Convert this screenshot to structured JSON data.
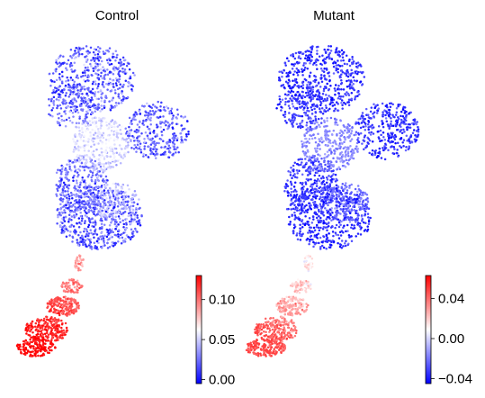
{
  "chart_data": [
    {
      "type": "scatter",
      "subtype": "embedding-colored-by-value",
      "title": "Control",
      "xlabel": "",
      "ylabel": "",
      "axes_visible": false,
      "colormap": "bwr",
      "colorbar": {
        "range": [
          -0.005,
          0.13
        ],
        "ticks": [
          0.0,
          0.05,
          0.1
        ],
        "tick_labels": [
          "0.00",
          "0.05",
          "0.10"
        ]
      },
      "regions": [
        {
          "name": "upper-lobes",
          "value_range": [
            0.0,
            0.055
          ],
          "typical_value": 0.02
        },
        {
          "name": "central-region",
          "value_range": [
            0.03,
            0.06
          ],
          "typical_value": 0.045
        },
        {
          "name": "lower-left-branch",
          "value_range": [
            0.07,
            0.13
          ],
          "typical_value": 0.11
        }
      ]
    },
    {
      "type": "scatter",
      "subtype": "embedding-colored-by-value",
      "title": "Mutant",
      "xlabel": "",
      "ylabel": "",
      "axes_visible": false,
      "colormap": "bwr",
      "colorbar": {
        "range": [
          -0.045,
          0.063
        ],
        "ticks": [
          0.04,
          0.0,
          -0.04
        ],
        "tick_labels": [
          "0.04",
          "0.00",
          "−0.04"
        ]
      },
      "regions": [
        {
          "name": "upper-lobes",
          "value_range": [
            -0.045,
            -0.02
          ],
          "typical_value": -0.035
        },
        {
          "name": "central-region",
          "value_range": [
            -0.03,
            -0.01
          ],
          "typical_value": -0.022
        },
        {
          "name": "lower-left-branch",
          "value_range": [
            -0.01,
            0.05
          ],
          "typical_value": 0.02
        }
      ]
    }
  ]
}
